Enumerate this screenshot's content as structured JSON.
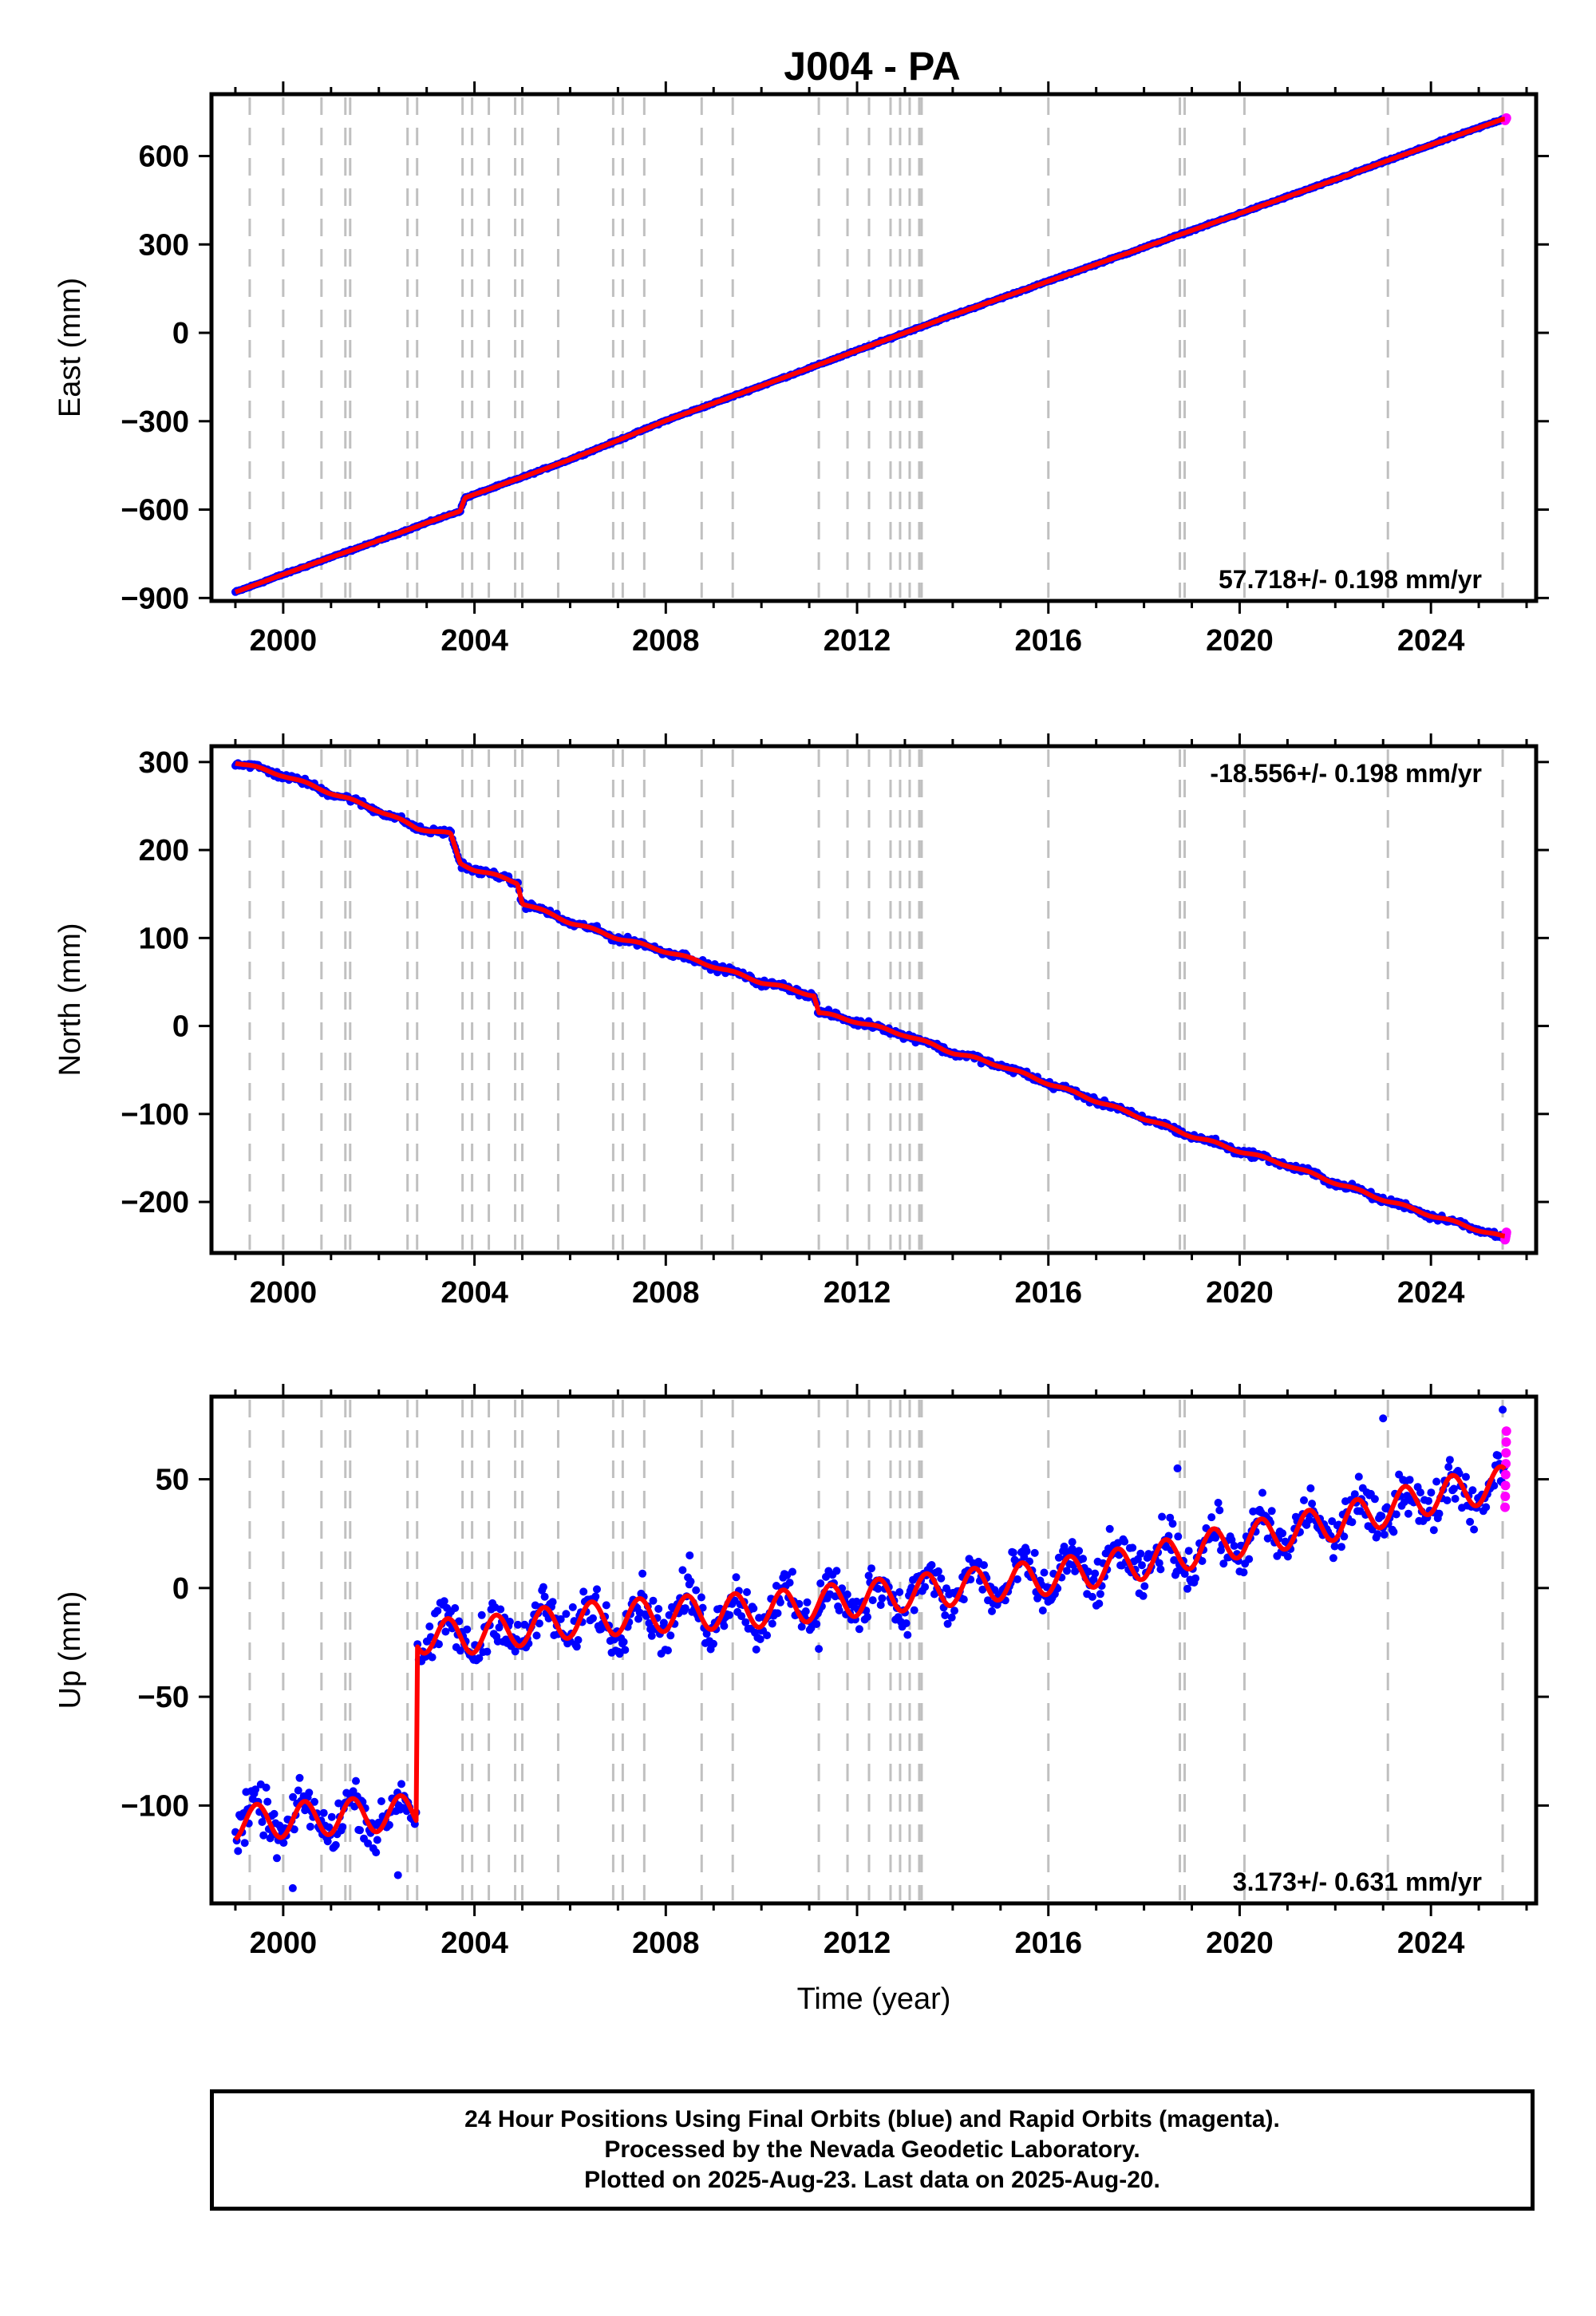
{
  "title": "J004 - PA",
  "footer": {
    "line1": "24 Hour Positions Using Final Orbits (blue) and Rapid Orbits (magenta).",
    "line2": "Processed by the Nevada Geodetic Laboratory.",
    "line3": "Plotted on 2025-Aug-23. Last data on 2025-Aug-20."
  },
  "colors": {
    "final": "#0000ff",
    "rapid": "#ff00ff",
    "model": "#ff0000",
    "steps": "#c0c0c0"
  },
  "chart_data": [
    {
      "type": "scatter",
      "name": "east",
      "ylabel": "East (mm)",
      "xlabel": "",
      "xlim": [
        1998.5,
        2026.2
      ],
      "ylim": [
        -910,
        810
      ],
      "xticks": [
        "2000",
        "2004",
        "2008",
        "2012",
        "2016",
        "2020",
        "2024"
      ],
      "yticks": [
        "600",
        "300",
        "0",
        "−300",
        "−600",
        "−900"
      ],
      "ytick_values": [
        600,
        300,
        0,
        -300,
        -600,
        -900
      ],
      "rate_label": "57.718+/- 0.198 mm/yr",
      "rate_position": "bottom-right",
      "series": [
        {
          "name": "final",
          "x": [
            1999.0,
            2000.0,
            2001.0,
            2002.0,
            2003.0,
            2003.7,
            2003.8,
            2005.0,
            2006.0,
            2007.0,
            2008.0,
            2010.0,
            2012.0,
            2014.0,
            2016.0,
            2018.0,
            2020.0,
            2022.0,
            2024.0,
            2025.5
          ],
          "y": [
            -880,
            -820,
            -762,
            -705,
            -645,
            -605,
            -560,
            -490,
            -430,
            -365,
            -298,
            -180,
            -60,
            60,
            175,
            290,
            405,
            520,
            638,
            725
          ]
        }
      ],
      "grid": false
    },
    {
      "type": "scatter",
      "name": "north",
      "ylabel": "North (mm)",
      "xlabel": "",
      "xlim": [
        1998.5,
        2026.2
      ],
      "ylim": [
        -258,
        318
      ],
      "xticks": [
        "2000",
        "2004",
        "2008",
        "2012",
        "2016",
        "2020",
        "2024"
      ],
      "yticks": [
        "300",
        "200",
        "100",
        "0",
        "−100",
        "−200"
      ],
      "ytick_values": [
        300,
        200,
        100,
        0,
        -100,
        -200
      ],
      "rate_label": "-18.556+/- 0.198 mm/yr",
      "rate_position": "top-right",
      "series": [
        {
          "name": "final",
          "x": [
            1999.0,
            2000.0,
            2001.0,
            2002.0,
            2002.8,
            2003.5,
            2003.7,
            2004.0,
            2004.9,
            2005.0,
            2006.0,
            2007.0,
            2008.0,
            2009.0,
            2010.0,
            2011.1,
            2011.2,
            2012.0,
            2013.0,
            2014.0,
            2015.0,
            2016.0,
            2017.0,
            2018.0,
            2019.0,
            2020.0,
            2021.0,
            2022.0,
            2023.0,
            2024.0,
            2025.5
          ],
          "y": [
            300,
            285,
            265,
            245,
            225,
            218,
            185,
            178,
            163,
            140,
            118,
            100,
            85,
            68,
            50,
            35,
            15,
            5,
            -10,
            -30,
            -45,
            -65,
            -85,
            -105,
            -125,
            -142,
            -158,
            -178,
            -197,
            -215,
            -240
          ]
        }
      ],
      "grid": false
    },
    {
      "type": "scatter",
      "name": "up",
      "ylabel": "Up (mm)",
      "xlabel": "Time (year)",
      "xlim": [
        1998.5,
        2026.2
      ],
      "ylim": [
        -145,
        88
      ],
      "xticks": [
        "2000",
        "2004",
        "2008",
        "2012",
        "2016",
        "2020",
        "2024"
      ],
      "yticks": [
        "50",
        "0",
        "−50",
        "−100"
      ],
      "ytick_values": [
        50,
        0,
        -50,
        -100
      ],
      "rate_label": "3.173+/- 0.631 mm/yr",
      "rate_position": "bottom-right",
      "series": [
        {
          "name": "model",
          "x": [
            1999.0,
            2002.8,
            2002.8,
            2004.0,
            2006.0,
            2008.0,
            2010.0,
            2012.0,
            2014.0,
            2016.0,
            2018.0,
            2020.0,
            2022.0,
            2024.0,
            2025.5
          ],
          "y": [
            -108,
            -103,
            -22,
            -22,
            -15,
            -12,
            -10,
            -5,
            0,
            5,
            12,
            22,
            30,
            42,
            48
          ]
        }
      ],
      "grid": false
    }
  ],
  "step_epochs": [
    1999.3,
    2000.0,
    2000.8,
    2001.3,
    2001.4,
    2002.6,
    2002.8,
    2003.75,
    2003.95,
    2004.3,
    2004.85,
    2005.0,
    2005.75,
    2006.9,
    2007.1,
    2007.55,
    2008.75,
    2009.4,
    2011.2,
    2011.8,
    2012.25,
    2012.7,
    2012.9,
    2013.1,
    2013.3,
    2013.35,
    2016.0,
    2018.75,
    2018.85,
    2020.1,
    2023.1,
    2025.5
  ]
}
